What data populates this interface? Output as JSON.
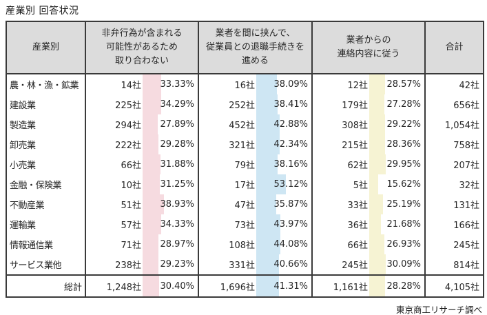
{
  "title": "産業別 回答状況",
  "footer": "東京商工リサーチ調べ",
  "colors": {
    "col1_bar": "#F6DBE0",
    "col2_bar": "#CEE6F3",
    "col3_bar": "#F6F3D3",
    "header_bg": "#DCDCDC",
    "border": "#3A3A3A"
  },
  "table": {
    "headers": {
      "industry": "産業別",
      "col1": "非弁行為が含まれる\n可能性があるため\n取り合わない",
      "col2": "業者を間に挟んで、\n従業員との退職手続きを\n進める",
      "col3": "業者からの\n連絡内容に従う",
      "total": "合計"
    },
    "rows": [
      {
        "industry": "農・林・漁・鉱業",
        "c1_count": "14社",
        "c1_pct": "33.33%",
        "c2_count": "16社",
        "c2_pct": "38.09%",
        "c3_count": "12社",
        "c3_pct": "28.57%",
        "total": "42社"
      },
      {
        "industry": "建設業",
        "c1_count": "225社",
        "c1_pct": "34.29%",
        "c2_count": "252社",
        "c2_pct": "38.41%",
        "c3_count": "179社",
        "c3_pct": "27.28%",
        "total": "656社"
      },
      {
        "industry": "製造業",
        "c1_count": "294社",
        "c1_pct": "27.89%",
        "c2_count": "452社",
        "c2_pct": "42.88%",
        "c3_count": "308社",
        "c3_pct": "29.22%",
        "total": "1,054社"
      },
      {
        "industry": "卸売業",
        "c1_count": "222社",
        "c1_pct": "29.28%",
        "c2_count": "321社",
        "c2_pct": "42.34%",
        "c3_count": "215社",
        "c3_pct": "28.36%",
        "total": "758社"
      },
      {
        "industry": "小売業",
        "c1_count": "66社",
        "c1_pct": "31.88%",
        "c2_count": "79社",
        "c2_pct": "38.16%",
        "c3_count": "62社",
        "c3_pct": "29.95%",
        "total": "207社"
      },
      {
        "industry": "金融・保険業",
        "c1_count": "10社",
        "c1_pct": "31.25%",
        "c2_count": "17社",
        "c2_pct": "53.12%",
        "c3_count": "5社",
        "c3_pct": "15.62%",
        "total": "32社"
      },
      {
        "industry": "不動産業",
        "c1_count": "51社",
        "c1_pct": "38.93%",
        "c2_count": "47社",
        "c2_pct": "35.87%",
        "c3_count": "33社",
        "c3_pct": "25.19%",
        "total": "131社"
      },
      {
        "industry": "運輸業",
        "c1_count": "57社",
        "c1_pct": "34.33%",
        "c2_count": "73社",
        "c2_pct": "43.97%",
        "c3_count": "36社",
        "c3_pct": "21.68%",
        "total": "166社"
      },
      {
        "industry": "情報通信業",
        "c1_count": "71社",
        "c1_pct": "28.97%",
        "c2_count": "108社",
        "c2_pct": "44.08%",
        "c3_count": "66社",
        "c3_pct": "26.93%",
        "total": "245社"
      },
      {
        "industry": "サービス業他",
        "c1_count": "238社",
        "c1_pct": "29.23%",
        "c2_count": "331社",
        "c2_pct": "40.66%",
        "c3_count": "245社",
        "c3_pct": "30.09%",
        "total": "814社"
      }
    ],
    "total_row": {
      "industry": "総計",
      "c1_count": "1,248社",
      "c1_pct": "30.40%",
      "c2_count": "1,696社",
      "c2_pct": "41.31%",
      "c3_count": "1,161社",
      "c3_pct": "28.28%",
      "total": "4,105社"
    }
  },
  "chart_data": {
    "type": "table",
    "title": "産業別 回答状況",
    "categories": [
      "農・林・漁・鉱業",
      "建設業",
      "製造業",
      "卸売業",
      "小売業",
      "金融・保険業",
      "不動産業",
      "運輸業",
      "情報通信業",
      "サービス業他",
      "総計"
    ],
    "series": [
      {
        "name": "非弁行為が含まれる可能性があるため取り合わない（社数）",
        "values": [
          14,
          225,
          294,
          222,
          66,
          10,
          51,
          57,
          71,
          238,
          1248
        ]
      },
      {
        "name": "非弁行為が含まれる可能性があるため取り合わない（％）",
        "values": [
          33.33,
          34.29,
          27.89,
          29.28,
          31.88,
          31.25,
          38.93,
          34.33,
          28.97,
          29.23,
          30.4
        ]
      },
      {
        "name": "業者を間に挟んで、従業員との退職手続きを進める（社数）",
        "values": [
          16,
          252,
          452,
          321,
          79,
          17,
          47,
          73,
          108,
          331,
          1696
        ]
      },
      {
        "name": "業者を間に挟んで、従業員との退職手続きを進める（％）",
        "values": [
          38.09,
          38.41,
          42.88,
          42.34,
          38.16,
          53.12,
          35.87,
          43.97,
          44.08,
          40.66,
          41.31
        ]
      },
      {
        "name": "業者からの連絡内容に従う（社数）",
        "values": [
          12,
          179,
          308,
          215,
          62,
          5,
          33,
          36,
          66,
          245,
          1161
        ]
      },
      {
        "name": "業者からの連絡内容に従う（％）",
        "values": [
          28.57,
          27.28,
          29.22,
          28.36,
          29.95,
          15.62,
          25.19,
          21.68,
          26.93,
          30.09,
          28.28
        ]
      },
      {
        "name": "合計（社数）",
        "values": [
          42,
          656,
          1054,
          758,
          207,
          32,
          131,
          166,
          245,
          814,
          4105
        ]
      }
    ],
    "annotations": [
      "東京商工リサーチ調べ"
    ],
    "layout": {
      "percent_cells_have_databars": true,
      "databar_scale": "0-100%",
      "grid": "column separators only, no row lines"
    }
  }
}
